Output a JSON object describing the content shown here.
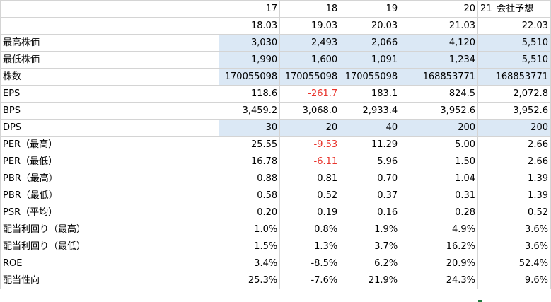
{
  "header": {
    "years": [
      "17",
      "18",
      "19",
      "20",
      "21_会社予想"
    ],
    "periods": [
      "18.03",
      "19.03",
      "20.03",
      "21.03",
      "22.03"
    ]
  },
  "rows": [
    {
      "label": "最高株価",
      "highlight": true,
      "values": [
        "3,030",
        "2,493",
        "2,066",
        "4,120",
        "5,510"
      ],
      "negative": [
        false,
        false,
        false,
        false,
        false
      ]
    },
    {
      "label": "最低株価",
      "highlight": true,
      "values": [
        "1,990",
        "1,600",
        "1,091",
        "1,234",
        "5,510"
      ],
      "negative": [
        false,
        false,
        false,
        false,
        false
      ]
    },
    {
      "label": "株数",
      "highlight": true,
      "values": [
        "170055098",
        "170055098",
        "170055098",
        "168853771",
        "168853771"
      ],
      "negative": [
        false,
        false,
        false,
        false,
        false
      ]
    },
    {
      "label": "EPS",
      "highlight": false,
      "values": [
        "118.6",
        "-261.7",
        "183.1",
        "824.5",
        "2,072.8"
      ],
      "negative": [
        false,
        true,
        false,
        false,
        false
      ]
    },
    {
      "label": "BPS",
      "highlight": false,
      "values": [
        "3,459.2",
        "3,068.0",
        "2,933.4",
        "3,952.6",
        "3,952.6"
      ],
      "negative": [
        false,
        false,
        false,
        false,
        false
      ]
    },
    {
      "label": "DPS",
      "highlight": true,
      "values": [
        "30",
        "20",
        "40",
        "200",
        "200"
      ],
      "negative": [
        false,
        false,
        false,
        false,
        false
      ]
    },
    {
      "label": "PER（最高）",
      "highlight": false,
      "values": [
        "25.55",
        "-9.53",
        "11.29",
        "5.00",
        "2.66"
      ],
      "negative": [
        false,
        true,
        false,
        false,
        false
      ]
    },
    {
      "label": "PER（最低）",
      "highlight": false,
      "values": [
        "16.78",
        "-6.11",
        "5.96",
        "1.50",
        "2.66"
      ],
      "negative": [
        false,
        true,
        false,
        false,
        false
      ]
    },
    {
      "label": "PBR（最高）",
      "highlight": false,
      "values": [
        "0.88",
        "0.81",
        "0.70",
        "1.04",
        "1.39"
      ],
      "negative": [
        false,
        false,
        false,
        false,
        false
      ]
    },
    {
      "label": "PBR（最低）",
      "highlight": false,
      "values": [
        "0.58",
        "0.52",
        "0.37",
        "0.31",
        "1.39"
      ],
      "negative": [
        false,
        false,
        false,
        false,
        false
      ]
    },
    {
      "label": "PSR（平均）",
      "highlight": false,
      "values": [
        "0.20",
        "0.19",
        "0.16",
        "0.28",
        "0.52"
      ],
      "negative": [
        false,
        false,
        false,
        false,
        false
      ]
    },
    {
      "label": "配当利回り（最高）",
      "highlight": false,
      "values": [
        "1.0%",
        "0.8%",
        "1.9%",
        "4.9%",
        "3.6%"
      ],
      "negative": [
        false,
        false,
        false,
        false,
        false
      ]
    },
    {
      "label": "配当利回り（最低）",
      "highlight": false,
      "values": [
        "1.5%",
        "1.3%",
        "3.7%",
        "16.2%",
        "3.6%"
      ],
      "negative": [
        false,
        false,
        false,
        false,
        false
      ]
    },
    {
      "label": "ROE",
      "highlight": false,
      "values": [
        "3.4%",
        "-8.5%",
        "6.2%",
        "20.9%",
        "52.4%"
      ],
      "negative": [
        false,
        false,
        false,
        false,
        false
      ]
    },
    {
      "label": "配当性向",
      "highlight": false,
      "values": [
        "25.3%",
        "-7.6%",
        "21.9%",
        "24.3%",
        "9.6%"
      ],
      "negative": [
        false,
        false,
        false,
        false,
        false
      ]
    }
  ],
  "colors": {
    "highlight_fill": "#dbe8f5",
    "negative_text": "#e8332b",
    "grid": "#d4d4d4"
  }
}
